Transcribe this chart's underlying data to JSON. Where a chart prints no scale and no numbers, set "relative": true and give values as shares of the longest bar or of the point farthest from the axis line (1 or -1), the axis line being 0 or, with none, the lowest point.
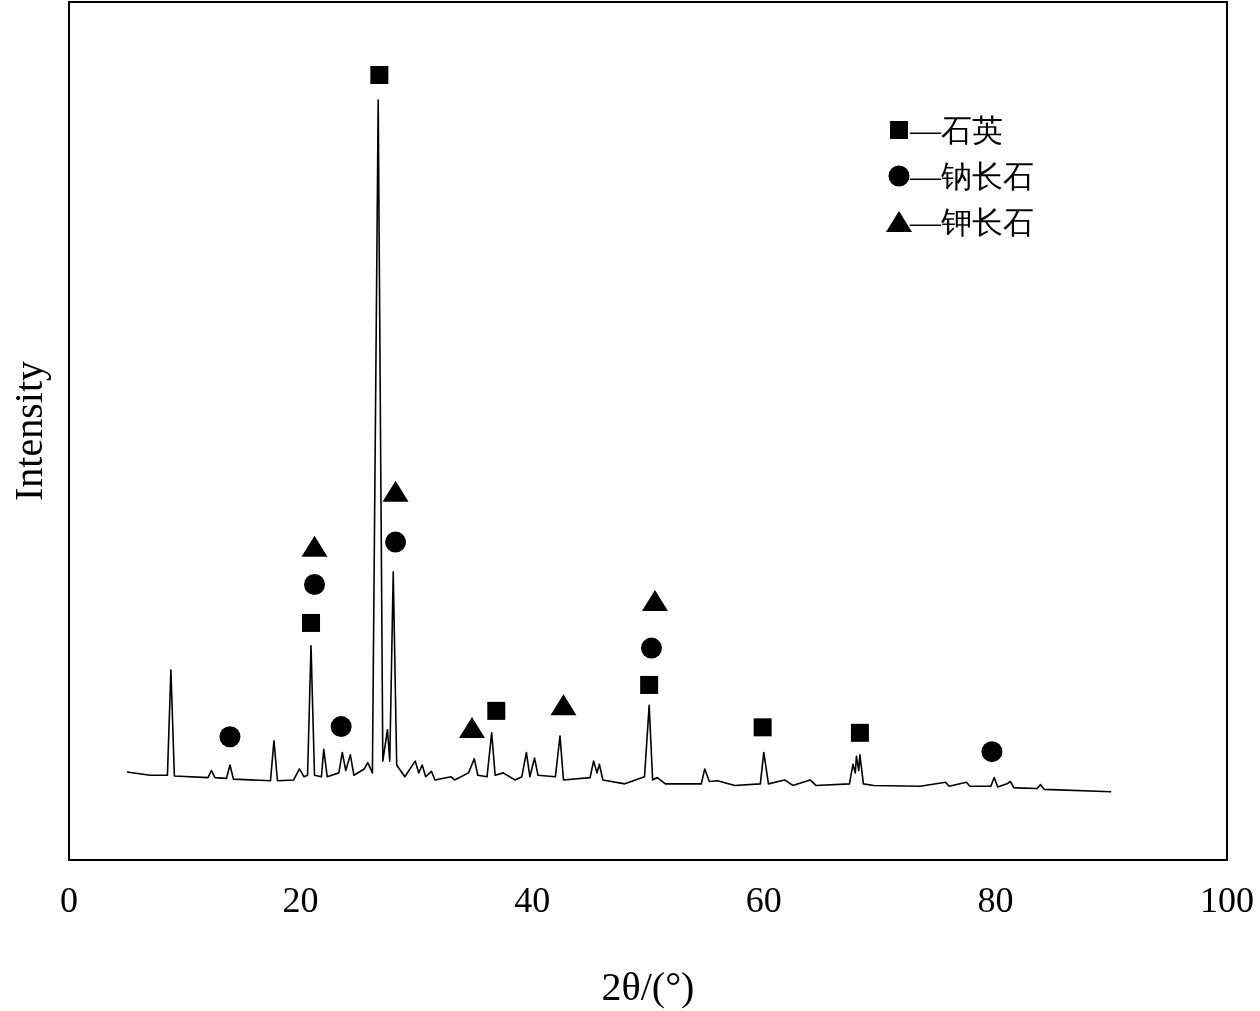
{
  "chart_data": {
    "type": "line",
    "xlabel": "2θ/(°)",
    "ylabel": "Intensity",
    "relative": true,
    "xlim": [
      0,
      100
    ],
    "xticks": [
      0,
      20,
      40,
      60,
      80,
      100
    ],
    "legend": "top right",
    "grid": false,
    "series": [
      {
        "type": "line",
        "color": "#000000",
        "marker": "none",
        "line_style": "solid",
        "x": [
          5.0,
          7.0,
          8.5,
          8.8,
          9.1,
          12.0,
          12.3,
          12.6,
          13.6,
          13.9,
          14.2,
          17.4,
          17.7,
          18.0,
          19.4,
          19.9,
          20.3,
          20.6,
          20.9,
          21.2,
          21.8,
          22.0,
          22.3,
          23.3,
          23.6,
          23.9,
          24.3,
          24.6,
          25.5,
          25.8,
          26.2,
          26.7,
          27.1,
          27.5,
          27.7,
          28.0,
          28.3,
          29.0,
          29.9,
          30.2,
          30.5,
          30.8,
          31.3,
          31.6,
          33.0,
          33.3,
          34.5,
          35.0,
          35.3,
          36.1,
          36.5,
          36.8,
          37.5,
          38.5,
          39.1,
          39.5,
          39.8,
          40.2,
          40.5,
          42.0,
          42.4,
          42.7,
          45.0,
          45.3,
          45.6,
          45.8,
          46.1,
          48.0,
          49.7,
          50.1,
          50.4,
          50.8,
          51.5,
          54.6,
          54.9,
          55.3,
          56.0,
          57.5,
          59.7,
          60.0,
          60.4,
          61.8,
          62.5,
          64.0,
          64.5,
          67.4,
          67.7,
          67.9,
          68.0,
          68.2,
          68.3,
          68.6,
          69.5,
          73.5,
          75.7,
          76.0,
          77.5,
          77.8,
          79.6,
          79.9,
          80.2,
          81.0,
          81.3,
          81.6,
          83.6,
          83.9,
          84.2,
          90.0
        ],
        "values": [
          0.112,
          0.108,
          0.108,
          0.242,
          0.107,
          0.105,
          0.114,
          0.105,
          0.104,
          0.121,
          0.103,
          0.101,
          0.152,
          0.101,
          0.102,
          0.116,
          0.106,
          0.108,
          0.273,
          0.108,
          0.106,
          0.141,
          0.106,
          0.111,
          0.137,
          0.114,
          0.134,
          0.108,
          0.116,
          0.124,
          0.111,
          0.968,
          0.126,
          0.166,
          0.126,
          0.367,
          0.121,
          0.106,
          0.126,
          0.111,
          0.121,
          0.106,
          0.113,
          0.102,
          0.106,
          0.102,
          0.111,
          0.129,
          0.108,
          0.106,
          0.162,
          0.108,
          0.111,
          0.102,
          0.106,
          0.137,
          0.106,
          0.13,
          0.108,
          0.106,
          0.158,
          0.102,
          0.105,
          0.126,
          0.111,
          0.122,
          0.102,
          0.097,
          0.106,
          0.197,
          0.102,
          0.105,
          0.097,
          0.097,
          0.116,
          0.1,
          0.101,
          0.095,
          0.097,
          0.137,
          0.097,
          0.102,
          0.095,
          0.102,
          0.095,
          0.097,
          0.122,
          0.111,
          0.132,
          0.114,
          0.134,
          0.097,
          0.095,
          0.094,
          0.099,
          0.094,
          0.099,
          0.094,
          0.094,
          0.105,
          0.093,
          0.097,
          0.1,
          0.092,
          0.091,
          0.096,
          0.09,
          0.087
        ]
      },
      {
        "type": "scatter",
        "name": "—石英",
        "marker": "square",
        "color": "#000000",
        "x": [
          26.8,
          20.9,
          36.9,
          50.1,
          59.9,
          68.3
        ],
        "values": [
          1,
          0.302,
          0.19,
          0.223,
          0.169,
          0.162
        ]
      },
      {
        "type": "scatter",
        "name": "—钠长石",
        "marker": "circle",
        "color": "#000000",
        "x": [
          13.9,
          21.2,
          23.5,
          28.2,
          50.3,
          79.7
        ],
        "values": [
          0.157,
          0.351,
          0.17,
          0.405,
          0.27,
          0.138
        ]
      },
      {
        "type": "scatter",
        "name": "—钾长石",
        "marker": "triangle",
        "color": "#000000",
        "x": [
          21.2,
          28.2,
          34.8,
          42.7,
          50.6
        ],
        "values": [
          0.399,
          0.469,
          0.168,
          0.197,
          0.33
        ]
      }
    ]
  }
}
